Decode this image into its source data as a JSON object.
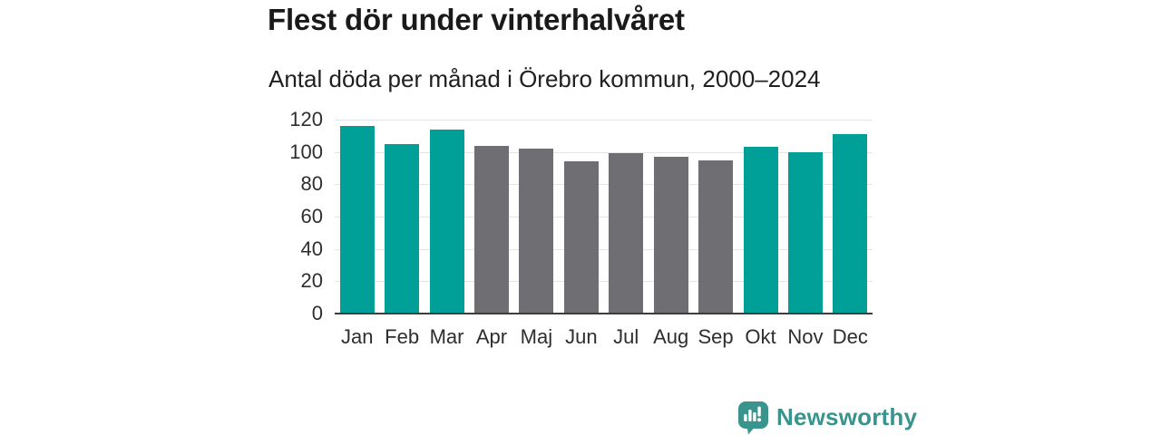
{
  "page": {
    "background": "#ffffff"
  },
  "header": {
    "title": "Flest dör under vinterhalvåret",
    "subtitle": "Antal döda per månad i Örebro kommun, 2000–2024"
  },
  "chart_data": {
    "type": "bar",
    "title": "Flest dör under vinterhalvåret",
    "subtitle": "Antal döda per månad i Örebro kommun, 2000–2024",
    "categories": [
      "Jan",
      "Feb",
      "Mar",
      "Apr",
      "Maj",
      "Jun",
      "Jul",
      "Aug",
      "Sep",
      "Okt",
      "Nov",
      "Dec"
    ],
    "values": [
      116,
      105,
      114,
      104,
      102,
      94,
      99,
      97,
      95,
      103,
      100,
      111
    ],
    "highlighted": [
      true,
      true,
      true,
      false,
      false,
      false,
      false,
      false,
      false,
      true,
      true,
      true
    ],
    "xlabel": "",
    "ylabel": "",
    "ylim": [
      0,
      120
    ],
    "yticks": [
      0,
      20,
      40,
      60,
      80,
      100,
      120
    ],
    "grid": "horizontal",
    "legend": "none",
    "colors": {
      "highlight": "#00a099",
      "base": "#6e6e73",
      "gridline": "#e4e4e4",
      "axis_line": "#3d3d3d",
      "tick_text": "#2e2e2e"
    }
  },
  "footer": {
    "brand": "Newsworthy",
    "logo_icon": "newsworthy-speech-bubble-chart-icon",
    "brand_color": "#38948c"
  }
}
